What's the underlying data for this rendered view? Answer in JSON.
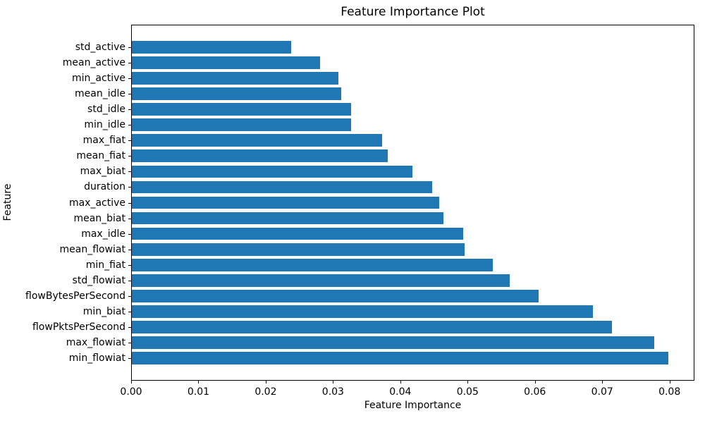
{
  "chart_data": {
    "type": "bar",
    "orientation": "horizontal",
    "title": "Feature Importance Plot",
    "xlabel": "Feature Importance",
    "ylabel": "Feature",
    "categories": [
      "std_active",
      "mean_active",
      "min_active",
      "mean_idle",
      "std_idle",
      "min_idle",
      "max_fiat",
      "mean_fiat",
      "max_biat",
      "duration",
      "max_active",
      "mean_biat",
      "max_idle",
      "mean_flowiat",
      "min_fiat",
      "std_flowiat",
      "flowBytesPerSecond",
      "min_biat",
      "flowPktsPerSecond",
      "max_flowiat",
      "min_flowiat"
    ],
    "values": [
      0.0237,
      0.028,
      0.0307,
      0.0311,
      0.0326,
      0.0326,
      0.0372,
      0.038,
      0.0417,
      0.0446,
      0.0457,
      0.0463,
      0.0492,
      0.0494,
      0.0536,
      0.0561,
      0.0604,
      0.0685,
      0.0713,
      0.0776,
      0.0797
    ],
    "xlim": [
      0,
      0.0837
    ],
    "xticks": [
      0,
      0.01,
      0.02,
      0.03,
      0.04,
      0.05,
      0.06,
      0.07,
      0.08
    ],
    "xtick_labels": [
      "0.00",
      "0.01",
      "0.02",
      "0.03",
      "0.04",
      "0.05",
      "0.06",
      "0.07",
      "0.08"
    ],
    "bar_color": "#1f77b4",
    "grid": false,
    "legend": null
  }
}
